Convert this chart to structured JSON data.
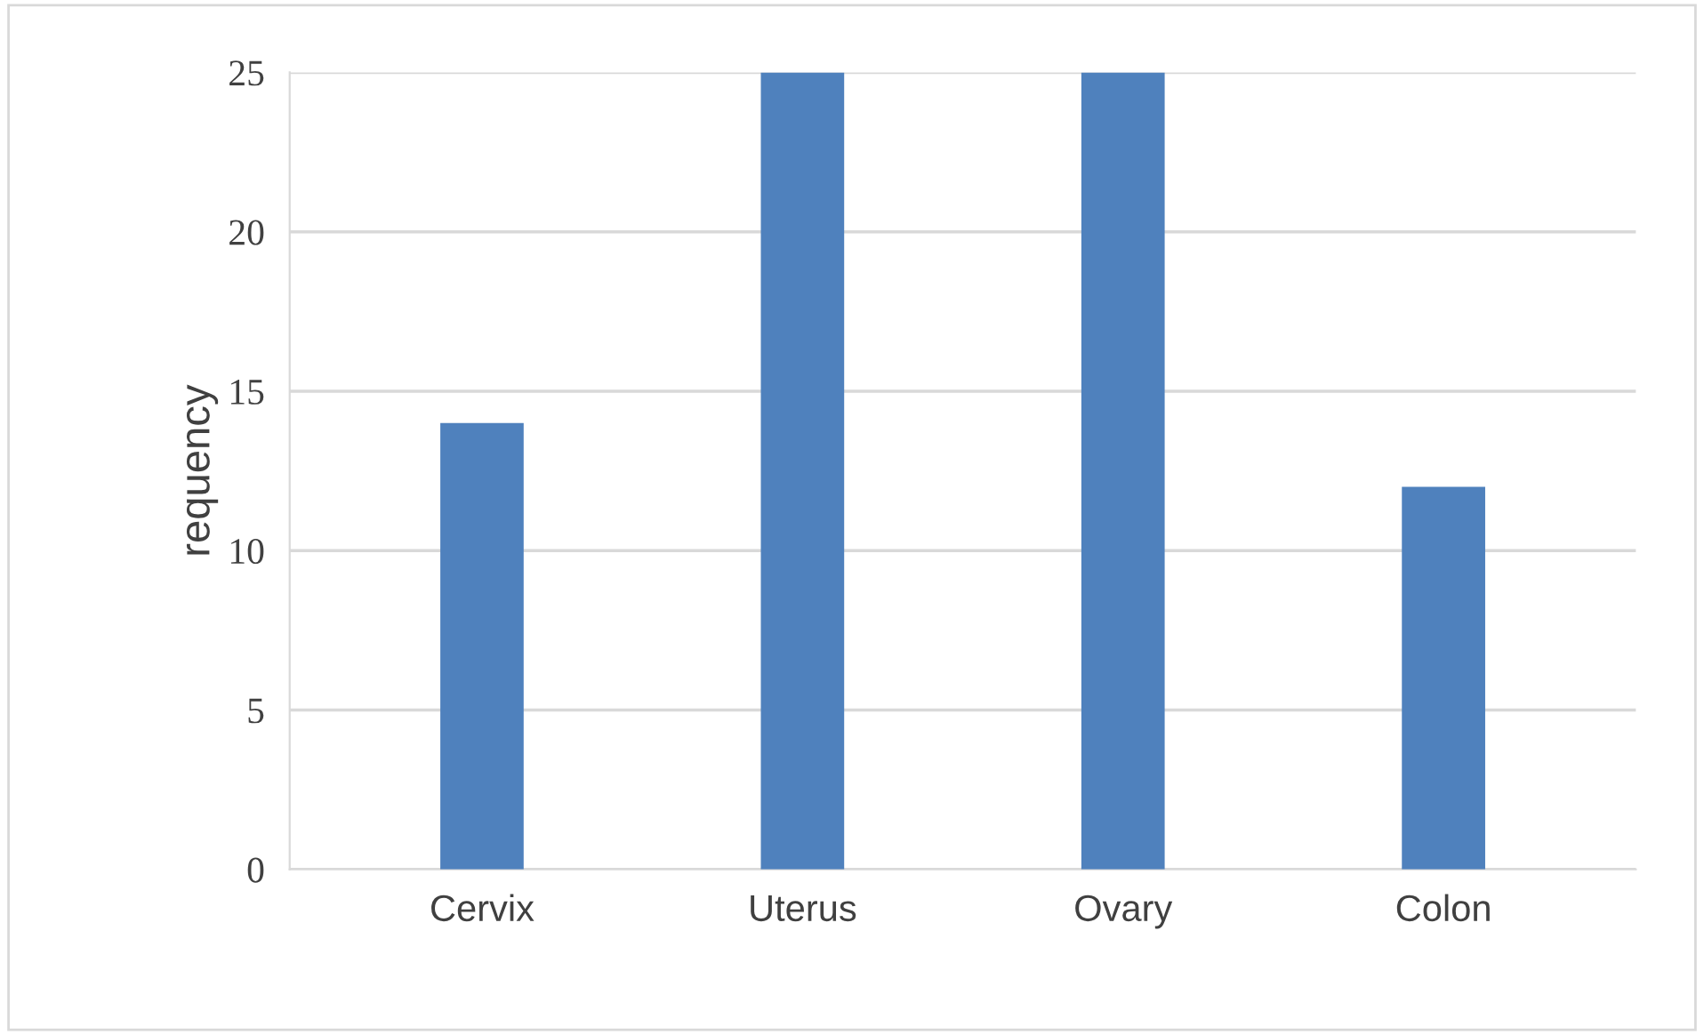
{
  "chart_data": {
    "type": "bar",
    "ylabel": "requency",
    "categories": [
      "Cervix",
      "Uterus",
      "Ovary",
      "Colon"
    ],
    "values": [
      14,
      25,
      25,
      12
    ],
    "color": "#4f81bd",
    "ylim": [
      0,
      25
    ],
    "yticks": [
      0,
      5,
      10,
      15,
      20,
      25
    ],
    "grid": "y"
  }
}
